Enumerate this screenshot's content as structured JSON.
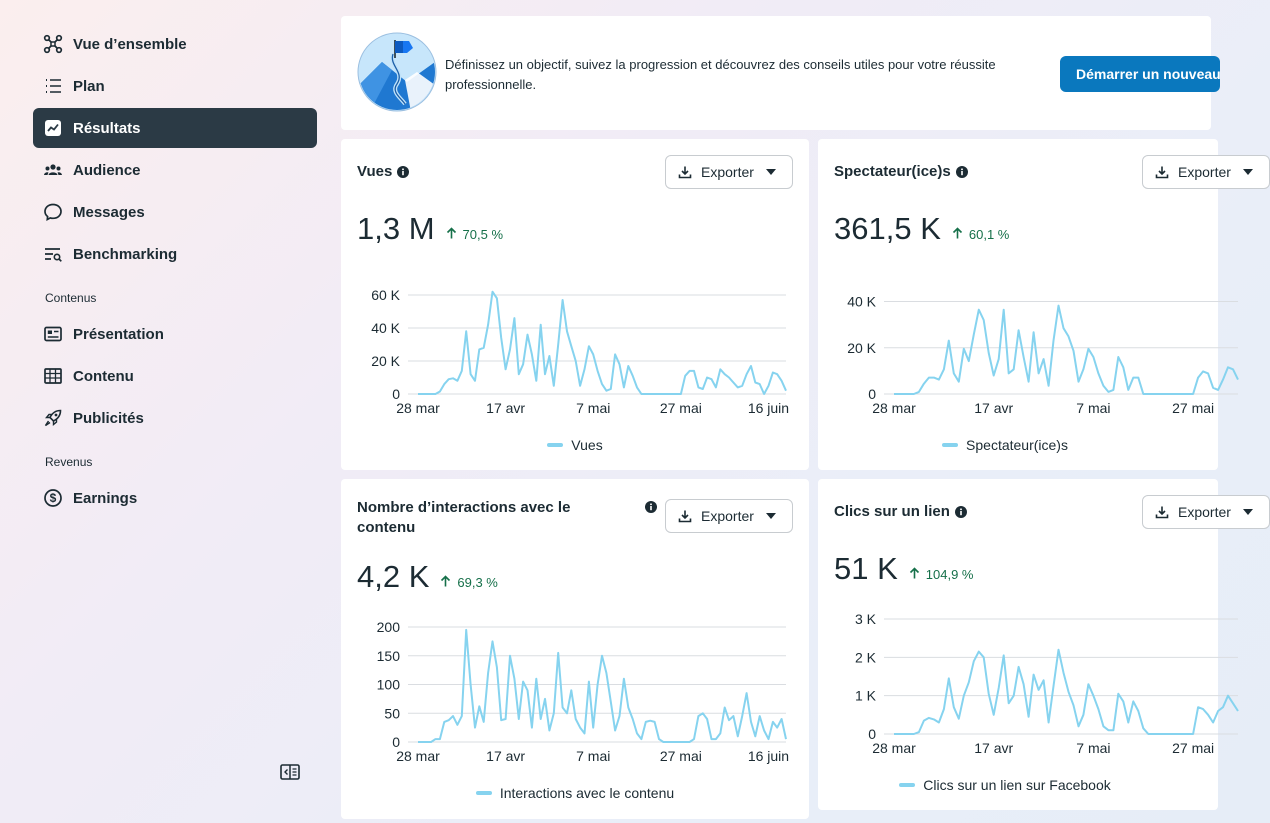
{
  "sidebar": {
    "items": [
      {
        "label": "Vue d’ensemble",
        "icon": "overview-icon"
      },
      {
        "label": "Plan",
        "icon": "plan-list-icon"
      },
      {
        "label": "Résultats",
        "icon": "results-chart-icon"
      },
      {
        "label": "Audience",
        "icon": "audience-icon"
      },
      {
        "label": "Messages",
        "icon": "messages-icon"
      },
      {
        "label": "Benchmarking",
        "icon": "benchmarking-icon"
      }
    ],
    "section_contenus": "Contenus",
    "contenus_items": [
      {
        "label": "Présentation",
        "icon": "presentation-icon"
      },
      {
        "label": "Contenu",
        "icon": "content-grid-icon"
      },
      {
        "label": "Publicités",
        "icon": "rocket-icon"
      }
    ],
    "section_revenus": "Revenus",
    "revenus_items": [
      {
        "label": "Earnings",
        "icon": "dollar-icon"
      }
    ],
    "active_item": "Résultats"
  },
  "banner": {
    "text": "Définissez un objectif, suivez la progression et découvrez des conseils utiles pour votre réussite professionnelle.",
    "button_label": "Démarrer un nouveau"
  },
  "colors": {
    "accent": "#0a78be",
    "series": "#86d3ef",
    "positive": "#16704a",
    "active_nav": "#2b3a45"
  },
  "cards": {
    "vues": {
      "title": "Vues",
      "export_label": "Exporter",
      "value": "1,3 M",
      "delta": "70,5 %",
      "legend": "Vues"
    },
    "spectateurs": {
      "title": "Spectateur(ice)s",
      "export_label": "Exporter",
      "value": "361,5 K",
      "delta": "60,1 %",
      "legend": "Spectateur(ice)s"
    },
    "interactions": {
      "title": "Nombre d’interactions avec le contenu",
      "export_label": "Exporter",
      "value": "4,2 K",
      "delta": "69,3 %",
      "legend": "Interactions avec le contenu"
    },
    "clics": {
      "title": "Clics sur un lien",
      "export_label": "Exporter",
      "value": "51 K",
      "delta": "104,9 %",
      "legend": "Clics sur un lien sur Facebook"
    }
  },
  "chart_data": [
    {
      "type": "line",
      "id": "vues",
      "x_ticks": [
        "28 mar",
        "17 avr",
        "7 mai",
        "27 mai",
        "16 juin"
      ],
      "y_ticks": [
        "0",
        "20 K",
        "40 K",
        "60 K"
      ],
      "ylim": [
        0,
        60000
      ],
      "series": [
        {
          "name": "Vues",
          "values": [
            0,
            0,
            0,
            0,
            0,
            1500,
            6000,
            9000,
            9500,
            8000,
            14000,
            38000,
            12000,
            8000,
            27000,
            28000,
            42000,
            62000,
            58000,
            34000,
            15000,
            27000,
            46000,
            12000,
            18000,
            36000,
            24000,
            8000,
            42000,
            12000,
            23000,
            5000,
            30000,
            57000,
            38000,
            29000,
            20000,
            5000,
            15000,
            29000,
            24000,
            14000,
            6000,
            2000,
            3000,
            24000,
            18000,
            4000,
            17000,
            11000,
            4000,
            0,
            0,
            0,
            0,
            0,
            0,
            0,
            0,
            0,
            0,
            11000,
            14000,
            14000,
            4000,
            3000,
            10000,
            9000,
            4000,
            15000,
            12000,
            10000,
            7000,
            4000,
            5000,
            12000,
            17000,
            7000,
            6000,
            0,
            5000,
            13000,
            12000,
            8000,
            2000
          ]
        }
      ],
      "legend": "Vues",
      "grid": true
    },
    {
      "type": "line",
      "id": "spectateurs",
      "x_ticks": [
        "28 mar",
        "17 avr",
        "7 mai",
        "27 mai"
      ],
      "y_ticks": [
        "0",
        "20 K",
        "40 K"
      ],
      "ylim": [
        0,
        45000
      ],
      "series": [
        {
          "name": "Spectateur(ice)s",
          "values": [
            0,
            0,
            0,
            0,
            0,
            1000,
            5000,
            8000,
            8000,
            7000,
            12000,
            26000,
            10000,
            6000,
            22000,
            16000,
            29000,
            41000,
            36000,
            20000,
            9000,
            17000,
            41000,
            10000,
            12000,
            31000,
            18000,
            6000,
            30000,
            10000,
            17000,
            4000,
            26000,
            43000,
            32000,
            28000,
            21000,
            6000,
            12000,
            22000,
            18000,
            10000,
            4000,
            1000,
            2000,
            18000,
            13000,
            2000,
            8000,
            8000,
            0,
            0,
            0,
            0,
            0,
            0,
            0,
            0,
            0,
            0,
            0,
            8000,
            11000,
            10000,
            3000,
            2000,
            7000,
            13000,
            12000,
            7000
          ]
        }
      ],
      "legend": "Spectateur(ice)s",
      "grid": true
    },
    {
      "type": "line",
      "id": "interactions",
      "x_ticks": [
        "28 mar",
        "17 avr",
        "7 mai",
        "27 mai",
        "16 juin"
      ],
      "y_ticks": [
        "0",
        "50",
        "100",
        "150",
        "200"
      ],
      "ylim": [
        0,
        200
      ],
      "series": [
        {
          "name": "Interactions avec le contenu",
          "values": [
            0,
            0,
            0,
            0,
            5,
            5,
            35,
            38,
            45,
            30,
            45,
            195,
            100,
            25,
            62,
            35,
            120,
            175,
            130,
            38,
            40,
            150,
            110,
            40,
            105,
            90,
            25,
            110,
            40,
            75,
            20,
            50,
            155,
            60,
            50,
            90,
            40,
            25,
            15,
            105,
            25,
            100,
            150,
            120,
            70,
            20,
            45,
            110,
            60,
            40,
            15,
            5,
            35,
            37,
            35,
            5,
            0,
            0,
            0,
            0,
            0,
            0,
            0,
            5,
            45,
            50,
            40,
            5,
            5,
            15,
            60,
            38,
            45,
            10,
            45,
            85,
            35,
            10,
            45,
            20,
            5,
            35,
            25,
            40,
            5
          ]
        }
      ],
      "legend": "Interactions avec le contenu",
      "grid": true
    },
    {
      "type": "line",
      "id": "clics",
      "x_ticks": [
        "28 mar",
        "17 avr",
        "7 mai",
        "27 mai"
      ],
      "y_ticks": [
        "0",
        "1 K",
        "2 K",
        "3 K"
      ],
      "ylim": [
        0,
        3000
      ],
      "series": [
        {
          "name": "Clics sur un lien sur Facebook",
          "values": [
            0,
            0,
            0,
            0,
            0,
            50,
            350,
            420,
            380,
            300,
            650,
            1450,
            700,
            400,
            1000,
            1350,
            1900,
            2150,
            2000,
            1050,
            500,
            1200,
            2050,
            800,
            1000,
            1750,
            1300,
            450,
            1550,
            1150,
            1400,
            300,
            1250,
            2200,
            1600,
            1100,
            750,
            200,
            500,
            1300,
            1000,
            650,
            200,
            100,
            100,
            1050,
            850,
            300,
            850,
            600,
            150,
            0,
            0,
            0,
            0,
            0,
            0,
            0,
            0,
            0,
            0,
            700,
            650,
            500,
            300,
            600,
            700,
            1000,
            800,
            600
          ]
        }
      ],
      "legend": "Clics sur un lien sur Facebook",
      "grid": true
    }
  ]
}
